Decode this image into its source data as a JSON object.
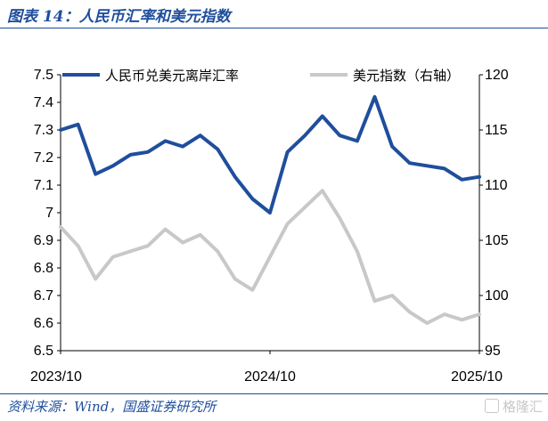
{
  "header": {
    "title": "图表 14：人民币汇率和美元指数"
  },
  "footer": {
    "source": "资料来源：Wind，国盛证券研究所",
    "watermark": "格隆汇"
  },
  "colors": {
    "cny": "#1f4e9c",
    "dxy": "#c8c8c8",
    "title": "#1f4e9c"
  },
  "chart_data": {
    "type": "line",
    "x_axis": {
      "ticks": [
        "2023/10",
        "2024/10",
        "2025/10"
      ],
      "range": [
        "2023/10",
        "2025/10"
      ]
    },
    "y_left": {
      "ylim": [
        6.5,
        7.5
      ],
      "ticks": [
        "7.5",
        "7.4",
        "7.3",
        "7.2",
        "7.1",
        "7",
        "6.9",
        "6.8",
        "6.7",
        "6.6",
        "6.5"
      ]
    },
    "y_right": {
      "ylim": [
        95,
        120
      ],
      "ticks": [
        "120",
        "115",
        "110",
        "105",
        "100",
        "95"
      ]
    },
    "grid": false,
    "legend_position": "top",
    "series": [
      {
        "name": "人民币兑美元离岸汇率",
        "axis": "left",
        "color": "#1f4e9c",
        "points": [
          [
            "2023-10",
            7.3
          ],
          [
            "2023-11",
            7.32
          ],
          [
            "2023-12",
            7.14
          ],
          [
            "2024-01",
            7.17
          ],
          [
            "2024-02",
            7.21
          ],
          [
            "2024-03",
            7.22
          ],
          [
            "2024-04",
            7.26
          ],
          [
            "2024-05",
            7.24
          ],
          [
            "2024-06",
            7.28
          ],
          [
            "2024-07",
            7.23
          ],
          [
            "2024-08",
            7.13
          ],
          [
            "2024-09",
            7.05
          ],
          [
            "2024-10",
            7.0
          ],
          [
            "2024-11",
            7.22
          ],
          [
            "2024-12",
            7.28
          ],
          [
            "2025-01",
            7.35
          ],
          [
            "2025-02",
            7.28
          ],
          [
            "2025-03",
            7.26
          ],
          [
            "2025-04",
            7.42
          ],
          [
            "2025-05",
            7.24
          ],
          [
            "2025-06",
            7.18
          ],
          [
            "2025-07",
            7.17
          ],
          [
            "2025-08",
            7.16
          ],
          [
            "2025-09",
            7.12
          ],
          [
            "2025-10",
            7.13
          ]
        ]
      },
      {
        "name": "美元指数（右轴）",
        "axis": "right",
        "color": "#c8c8c8",
        "points": [
          [
            "2023-10",
            106.2
          ],
          [
            "2023-11",
            104.5
          ],
          [
            "2023-12",
            101.5
          ],
          [
            "2024-01",
            103.5
          ],
          [
            "2024-02",
            104.0
          ],
          [
            "2024-03",
            104.5
          ],
          [
            "2024-04",
            106.0
          ],
          [
            "2024-05",
            104.8
          ],
          [
            "2024-06",
            105.5
          ],
          [
            "2024-07",
            104.0
          ],
          [
            "2024-08",
            101.5
          ],
          [
            "2024-09",
            100.5
          ],
          [
            "2024-10",
            103.5
          ],
          [
            "2024-11",
            106.5
          ],
          [
            "2024-12",
            108.0
          ],
          [
            "2025-01",
            109.5
          ],
          [
            "2025-02",
            107.0
          ],
          [
            "2025-03",
            104.0
          ],
          [
            "2025-04",
            99.5
          ],
          [
            "2025-05",
            100.0
          ],
          [
            "2025-06",
            98.5
          ],
          [
            "2025-07",
            97.5
          ],
          [
            "2025-08",
            98.3
          ],
          [
            "2025-09",
            97.8
          ],
          [
            "2025-10",
            98.3
          ]
        ]
      }
    ]
  }
}
